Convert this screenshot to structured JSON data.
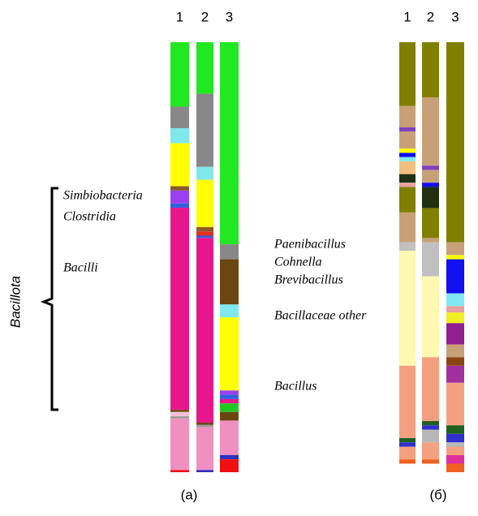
{
  "chart_data": [
    {
      "type": "bar",
      "stacked": true,
      "title": "(а)",
      "categories": [
        "1",
        "2",
        "3"
      ],
      "group_label": "Bacillota",
      "annotations": [
        "Simbiobacteria",
        "Clostridia",
        "Bacilli"
      ],
      "series": [
        {
          "color": "#22e822",
          "values": [
            15,
            12,
            47
          ]
        },
        {
          "color": "#888888",
          "values": [
            5,
            17,
            3.5
          ]
        },
        {
          "color": "#6b4610",
          "values": [
            0,
            0,
            10.5
          ]
        },
        {
          "color": "#7fe8ec",
          "values": [
            3.5,
            3,
            3
          ]
        },
        {
          "color": "#ffff00",
          "values": [
            10,
            11,
            17
          ]
        },
        {
          "color": "#8b5a2b",
          "values": [
            1,
            1,
            0
          ]
        },
        {
          "color": "#e03020",
          "values": [
            0,
            1,
            0
          ]
        },
        {
          "color": "#9b40f0",
          "values": [
            3,
            0,
            1
          ]
        },
        {
          "color": "#3060e0",
          "values": [
            1,
            0.5,
            1
          ]
        },
        {
          "color": "#e8168c",
          "values": [
            47,
            43,
            1
          ]
        },
        {
          "color": "#22c822",
          "values": [
            0,
            0,
            2
          ]
        },
        {
          "color": "#6b4610",
          "values": [
            0.5,
            0.5,
            2
          ]
        },
        {
          "color": "#f8c0d8",
          "values": [
            1,
            0,
            0
          ]
        },
        {
          "color": "#999999",
          "values": [
            0.5,
            0.5,
            0
          ]
        },
        {
          "color": "#f090c0",
          "values": [
            12,
            10,
            8
          ]
        },
        {
          "color": "#3030c0",
          "values": [
            0,
            0.5,
            1
          ]
        },
        {
          "color": "#f01010",
          "values": [
            0.5,
            0,
            3
          ]
        }
      ]
    },
    {
      "type": "bar",
      "stacked": true,
      "title": "(б)",
      "categories": [
        "1",
        "2",
        "3"
      ],
      "annotations": [
        "Paenibacillus",
        "Cohnella",
        "Brevibacillus",
        "Bacillaceae other",
        "Bacillus"
      ],
      "series": [
        {
          "color": "#808000",
          "values": [
            15,
            13,
            47
          ]
        },
        {
          "color": "#c8a078",
          "values": [
            5,
            16,
            3
          ]
        },
        {
          "color": "#8040c0",
          "values": [
            1,
            1,
            0
          ]
        },
        {
          "color": "#c8a078",
          "values": [
            4,
            3,
            0
          ]
        },
        {
          "color": "#ffff00",
          "values": [
            1,
            0,
            1
          ]
        },
        {
          "color": "#1010f0",
          "values": [
            1,
            1,
            8
          ]
        },
        {
          "color": "#80e8f0",
          "values": [
            1,
            0,
            3
          ]
        },
        {
          "color": "#f0c080",
          "values": [
            3,
            0,
            0
          ]
        },
        {
          "color": "#203010",
          "values": [
            2,
            5,
            0
          ]
        },
        {
          "color": "#e8a0a0",
          "values": [
            1,
            0,
            1.5
          ]
        },
        {
          "color": "#f0f020",
          "values": [
            0,
            0,
            2.5
          ]
        },
        {
          "color": "#808000",
          "values": [
            6,
            7,
            0
          ]
        },
        {
          "color": "#c8a078",
          "values": [
            7,
            1,
            0
          ]
        },
        {
          "color": "#902090",
          "values": [
            0,
            0,
            5
          ]
        },
        {
          "color": "#c0c0c0",
          "values": [
            2,
            8,
            0
          ]
        },
        {
          "color": "#c8a078",
          "values": [
            0,
            0,
            3
          ]
        },
        {
          "color": "#fff8b0",
          "values": [
            27,
            19,
            0
          ]
        },
        {
          "color": "#8b4513",
          "values": [
            0,
            0,
            2
          ]
        },
        {
          "color": "#a030a0",
          "values": [
            0,
            0,
            4
          ]
        },
        {
          "color": "#f4a080",
          "values": [
            17,
            15,
            10
          ]
        },
        {
          "color": "#206020",
          "values": [
            1,
            1,
            2
          ]
        },
        {
          "color": "#3030d0",
          "values": [
            1,
            1,
            2
          ]
        },
        {
          "color": "#b8b8b8",
          "values": [
            0,
            3,
            1
          ]
        },
        {
          "color": "#f4a080",
          "values": [
            3,
            4,
            2
          ]
        },
        {
          "color": "#e030a0",
          "values": [
            0,
            0,
            2
          ]
        },
        {
          "color": "#f06020",
          "values": [
            1,
            1,
            2
          ]
        }
      ]
    }
  ]
}
